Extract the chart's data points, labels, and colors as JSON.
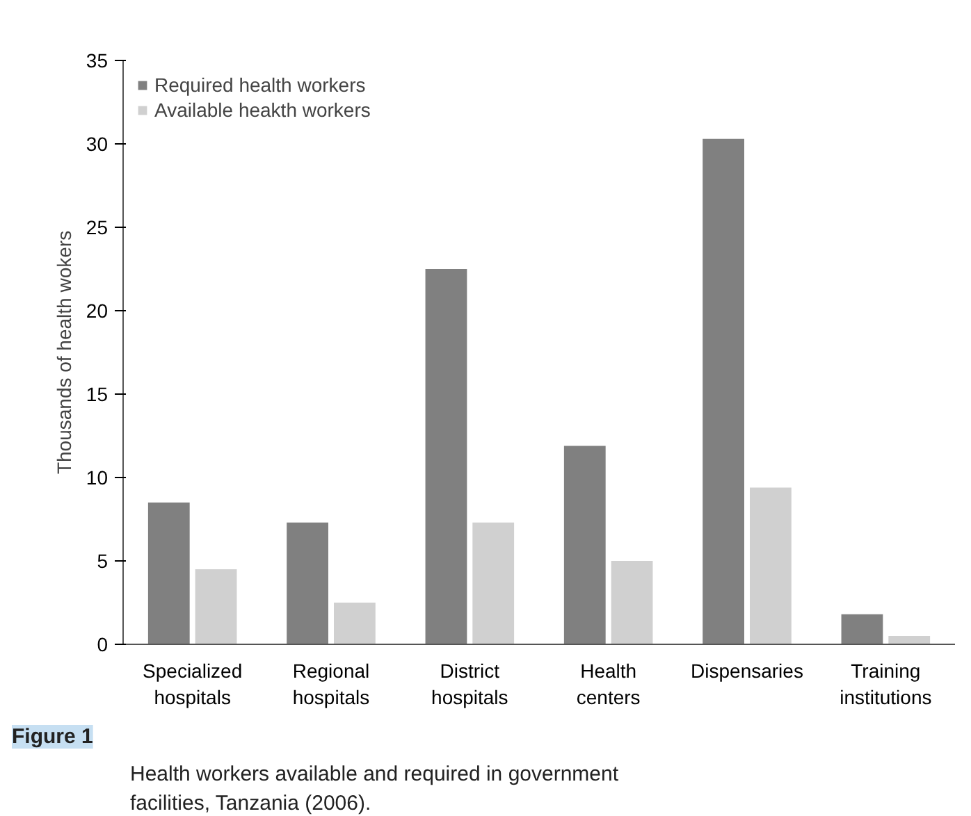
{
  "chart_data": {
    "type": "bar",
    "ylabel": "Thousands of health wokers",
    "categories": [
      "Specialized\nhospitals",
      "Regional\nhospitals",
      "District\nhospitals",
      "Health\ncenters",
      "Dispensaries",
      "Training\ninstitutions"
    ],
    "series": [
      {
        "name": "Required health workers",
        "color": "#808080",
        "values": [
          8.5,
          7.3,
          22.5,
          11.9,
          30.3,
          1.8
        ]
      },
      {
        "name": "Available heakth workers",
        "color": "#d0d0d0",
        "values": [
          4.5,
          2.5,
          7.3,
          5.0,
          9.4,
          0.5
        ]
      }
    ],
    "ylim": [
      0,
      35
    ],
    "yticks": [
      0,
      5,
      10,
      15,
      20,
      25,
      30,
      35
    ],
    "grid": false,
    "legend": "top left",
    "annotations": [
      "Figure 1",
      "Health workers available and required in government facilities, Tanzania (2006)."
    ]
  }
}
